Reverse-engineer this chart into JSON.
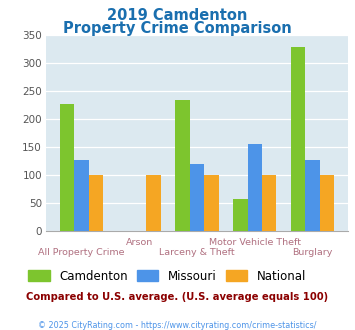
{
  "title_line1": "2019 Camdenton",
  "title_line2": "Property Crime Comparison",
  "title_color": "#1a6faf",
  "categories": [
    "All Property Crime",
    "Arson",
    "Larceny & Theft",
    "Motor Vehicle Theft",
    "Burglary"
  ],
  "camdenton": [
    227,
    0,
    233,
    57,
    328
  ],
  "missouri": [
    127,
    0,
    120,
    155,
    127
  ],
  "national": [
    100,
    100,
    100,
    100,
    100
  ],
  "camdenton_color": "#7dc52e",
  "missouri_color": "#4d94e8",
  "national_color": "#f5a623",
  "bg_color": "#dce9f0",
  "ylim": [
    0,
    350
  ],
  "yticks": [
    0,
    50,
    100,
    150,
    200,
    250,
    300,
    350
  ],
  "note": "Compared to U.S. average. (U.S. average equals 100)",
  "note_color": "#8b0000",
  "footer": "© 2025 CityRating.com - https://www.cityrating.com/crime-statistics/",
  "footer_color": "#4d94e8",
  "xlabel_color": "#b07080",
  "legend_labels": [
    "Camdenton",
    "Missouri",
    "National"
  ]
}
